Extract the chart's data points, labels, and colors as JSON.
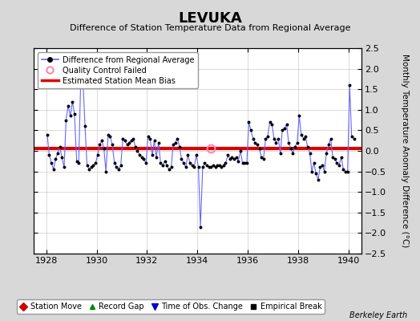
{
  "title": "LEVUKA",
  "subtitle": "Difference of Station Temperature Data from Regional Average",
  "ylabel": "Monthly Temperature Anomaly Difference (°C)",
  "xlabel_credit": "Berkeley Earth",
  "xlim": [
    1927.5,
    1940.5
  ],
  "ylim": [
    -2.5,
    2.5
  ],
  "yticks": [
    -2.5,
    -2,
    -1.5,
    -1,
    -0.5,
    0,
    0.5,
    1,
    1.5,
    2,
    2.5
  ],
  "xticks": [
    1928,
    1930,
    1932,
    1934,
    1936,
    1938,
    1940
  ],
  "bias_value": 0.05,
  "background_color": "#d8d8d8",
  "plot_background": "#ffffff",
  "line_color": "#6666ff",
  "dot_color": "#000000",
  "bias_color": "#dd0000",
  "data_x": [
    1928.04,
    1928.12,
    1928.21,
    1928.29,
    1928.37,
    1928.46,
    1928.54,
    1928.62,
    1928.71,
    1928.79,
    1928.87,
    1928.96,
    1929.04,
    1929.12,
    1929.21,
    1929.29,
    1929.37,
    1929.46,
    1929.54,
    1929.62,
    1929.71,
    1929.79,
    1929.87,
    1929.96,
    1930.04,
    1930.12,
    1930.21,
    1930.29,
    1930.37,
    1930.46,
    1930.54,
    1930.62,
    1930.71,
    1930.79,
    1930.87,
    1930.96,
    1931.04,
    1931.12,
    1931.21,
    1931.29,
    1931.37,
    1931.46,
    1931.54,
    1931.62,
    1931.71,
    1931.79,
    1931.87,
    1931.96,
    1932.04,
    1932.12,
    1932.21,
    1932.29,
    1932.37,
    1932.46,
    1932.54,
    1932.62,
    1932.71,
    1932.79,
    1932.87,
    1932.96,
    1933.04,
    1933.12,
    1933.21,
    1933.29,
    1933.37,
    1933.46,
    1933.54,
    1933.62,
    1933.71,
    1933.79,
    1933.87,
    1933.96,
    1934.04,
    1934.12,
    1934.21,
    1934.29,
    1934.37,
    1934.46,
    1934.54,
    1934.62,
    1934.71,
    1934.79,
    1934.87,
    1934.96,
    1935.04,
    1935.12,
    1935.21,
    1935.29,
    1935.37,
    1935.46,
    1935.54,
    1935.62,
    1935.71,
    1935.79,
    1935.87,
    1935.96,
    1936.04,
    1936.12,
    1936.21,
    1936.29,
    1936.37,
    1936.46,
    1936.54,
    1936.62,
    1936.71,
    1936.79,
    1936.87,
    1936.96,
    1937.04,
    1937.12,
    1937.21,
    1937.29,
    1937.37,
    1937.46,
    1937.54,
    1937.62,
    1937.71,
    1937.79,
    1937.87,
    1937.96,
    1938.04,
    1938.12,
    1938.21,
    1938.29,
    1938.37,
    1938.46,
    1938.54,
    1938.62,
    1938.71,
    1938.79,
    1938.87,
    1938.96,
    1939.04,
    1939.12,
    1939.21,
    1939.29,
    1939.37,
    1939.46,
    1939.54,
    1939.62,
    1939.71,
    1939.79,
    1939.87,
    1939.96,
    1940.04,
    1940.12,
    1940.21
  ],
  "data_y": [
    0.4,
    -0.1,
    -0.3,
    -0.45,
    -0.2,
    -0.05,
    0.1,
    -0.15,
    -0.4,
    0.75,
    1.1,
    0.85,
    1.2,
    0.9,
    -0.25,
    -0.3,
    1.75,
    1.7,
    0.6,
    -0.35,
    -0.45,
    -0.4,
    -0.35,
    -0.3,
    -0.1,
    0.15,
    0.25,
    0.05,
    -0.5,
    0.4,
    0.35,
    0.15,
    -0.3,
    -0.4,
    -0.45,
    -0.35,
    0.3,
    0.25,
    0.15,
    0.2,
    0.25,
    0.3,
    0.1,
    0.0,
    -0.1,
    -0.15,
    -0.2,
    -0.3,
    0.35,
    0.3,
    -0.1,
    0.25,
    -0.15,
    0.2,
    -0.3,
    -0.35,
    -0.25,
    -0.35,
    -0.45,
    -0.4,
    0.15,
    0.2,
    0.3,
    0.1,
    -0.2,
    -0.3,
    -0.4,
    -0.1,
    -0.3,
    -0.35,
    -0.4,
    -0.1,
    -0.4,
    -1.85,
    -0.4,
    -0.3,
    -0.35,
    -0.4,
    -0.4,
    -0.35,
    -0.4,
    -0.35,
    -0.35,
    -0.4,
    -0.35,
    -0.3,
    -0.1,
    -0.2,
    -0.15,
    -0.2,
    -0.15,
    -0.25,
    0.0,
    -0.3,
    -0.3,
    -0.3,
    0.7,
    0.5,
    0.3,
    0.2,
    0.15,
    0.05,
    -0.15,
    -0.2,
    0.3,
    0.35,
    0.7,
    0.65,
    0.3,
    0.2,
    0.3,
    -0.05,
    0.5,
    0.55,
    0.65,
    0.2,
    0.05,
    -0.05,
    0.1,
    0.2,
    0.85,
    0.4,
    0.3,
    0.35,
    0.1,
    -0.05,
    -0.5,
    -0.3,
    -0.55,
    -0.7,
    -0.4,
    -0.35,
    -0.5,
    -0.05,
    0.15,
    0.3,
    -0.15,
    -0.2,
    -0.3,
    -0.35,
    -0.15,
    -0.45,
    -0.5,
    -0.5,
    1.6,
    0.35,
    0.3
  ],
  "qc_failed_x": [
    1934.54
  ],
  "qc_failed_y": [
    0.05
  ]
}
